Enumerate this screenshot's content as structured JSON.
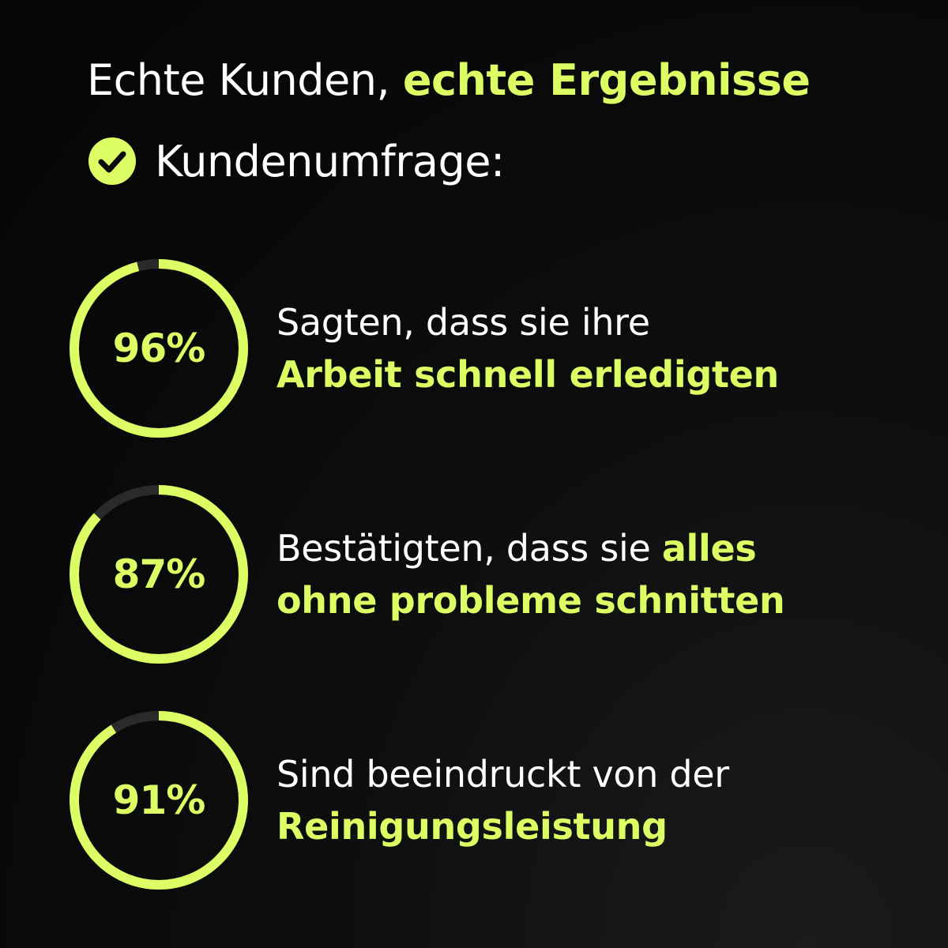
{
  "headline": {
    "plain": "Echte Kunden, ",
    "accent": "echte Ergebnisse"
  },
  "subhead": {
    "icon": "check-circle-icon",
    "text": "Kundenumfrage:"
  },
  "colors": {
    "accent": "#dcfd63",
    "track": "#2a2a2a",
    "background": "#0a0a0a",
    "text": "#ffffff"
  },
  "stats": [
    {
      "percent": 96,
      "label": "96%",
      "line1_normal": "Sagten, dass sie ihre",
      "line1_bold": "",
      "line2_bold": "Arbeit schnell erledigten"
    },
    {
      "percent": 87,
      "label": "87%",
      "line1_normal": "Bestätigten, dass sie ",
      "line1_bold": "alles",
      "line2_bold": "ohne probleme schnitten"
    },
    {
      "percent": 91,
      "label": "91%",
      "line1_normal": "Sind beeindruckt von der",
      "line1_bold": "",
      "line2_bold": "Reinigungsleistung"
    }
  ]
}
